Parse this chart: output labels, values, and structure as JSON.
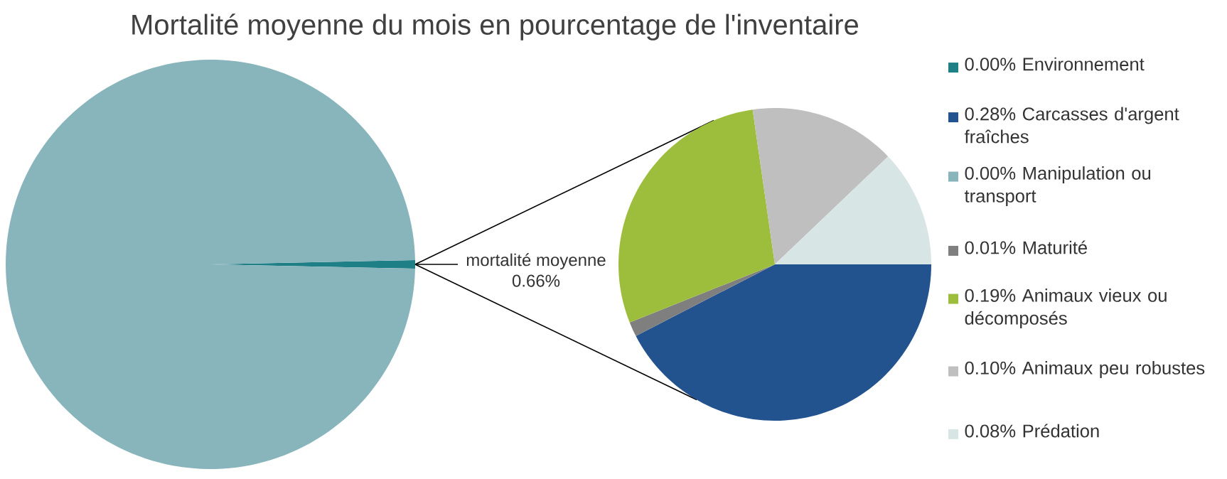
{
  "chart_data": [
    {
      "type": "pie",
      "title": "Mortalité moyenne du mois en pourcentage de l'inventaire",
      "categories": [
        "mortalité moyenne",
        null
      ],
      "values": [
        0.66,
        99.34
      ],
      "colors": [
        "#1f7f86",
        "#88b4bc"
      ],
      "value_labels": [
        "0.66%",
        null
      ]
    },
    {
      "type": "pie",
      "categories": [
        "0.00% Environnement",
        "0.28% Carcasses d'argent fraîches",
        "0.00% Manipulation ou transport",
        "0.01% Maturité",
        "0.19% Animaux vieux ou décomposés",
        "0.10% Animaux peu robustes",
        "0.08% Prédation"
      ],
      "values": [
        0,
        0.28,
        0,
        0.01,
        0.19,
        0.1,
        0.08
      ],
      "colors": [
        "#1f7f86",
        "#22538f",
        "#88b4bc",
        "#7f7f7f",
        "#9dbe3c",
        "#bfbfbf",
        "#d7e6e4"
      ],
      "legend": "right"
    }
  ]
}
